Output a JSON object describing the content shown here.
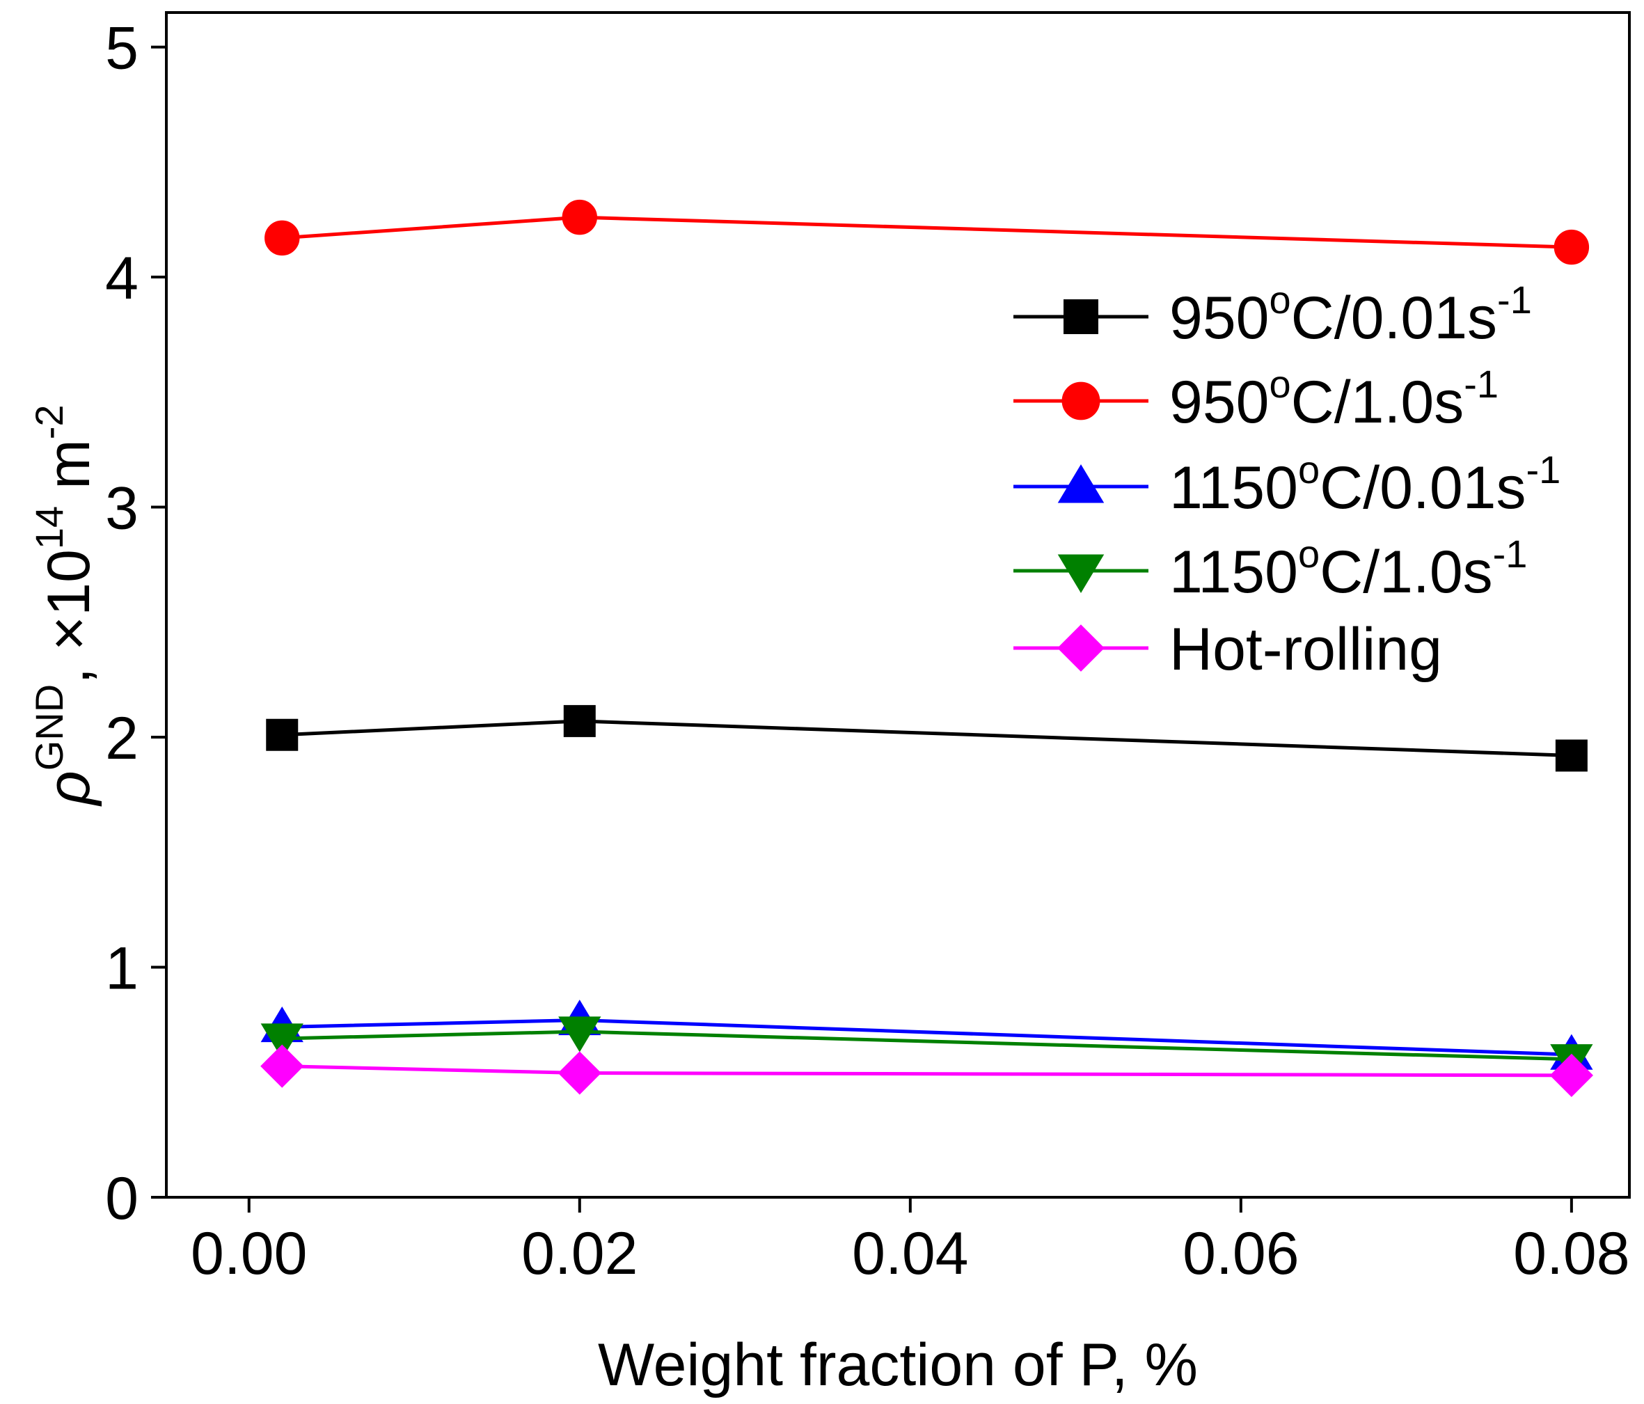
{
  "chart_data": {
    "type": "line",
    "xlabel": "Weight fraction of P, %",
    "ylabel": {
      "symbol": "ρ",
      "symbol_sup": "GND",
      "text": ", ×10",
      "text_sup": "14",
      "unit": " m",
      "unit_sup": "-2"
    },
    "xlim": [
      -0.005,
      0.0835
    ],
    "ylim": [
      0,
      5.15
    ],
    "xticks": [
      "0.00",
      "0.02",
      "0.04",
      "0.06",
      "0.08"
    ],
    "yticks": [
      "0",
      "1",
      "2",
      "3",
      "4",
      "5"
    ],
    "x": [
      0.002,
      0.02,
      0.08
    ],
    "series": [
      {
        "name": {
          "main": "950",
          "sup1": "o",
          "mid": "C/0.01s",
          "sup2": "-1"
        },
        "color": "#000000",
        "marker": "square",
        "values": [
          2.01,
          2.07,
          1.92
        ]
      },
      {
        "name": {
          "main": "950",
          "sup1": "o",
          "mid": "C/1.0s",
          "sup2": "-1"
        },
        "color": "#ff0000",
        "marker": "circle",
        "values": [
          4.17,
          4.26,
          4.13
        ]
      },
      {
        "name": {
          "main": "1150",
          "sup1": "o",
          "mid": "C/0.01s",
          "sup2": "-1"
        },
        "color": "#0000ff",
        "marker": "triangle-up",
        "values": [
          0.74,
          0.77,
          0.62
        ]
      },
      {
        "name": {
          "main": "1150",
          "sup1": "o",
          "mid": "C/1.0s",
          "sup2": "-1"
        },
        "color": "#008000",
        "marker": "triangle-down",
        "values": [
          0.69,
          0.72,
          0.6
        ]
      },
      {
        "name": {
          "main": "Hot-rolling",
          "sup1": "",
          "mid": "",
          "sup2": ""
        },
        "color": "#ff00ff",
        "marker": "diamond",
        "values": [
          0.57,
          0.54,
          0.53
        ]
      }
    ],
    "legend": "top-right",
    "grid": false
  }
}
